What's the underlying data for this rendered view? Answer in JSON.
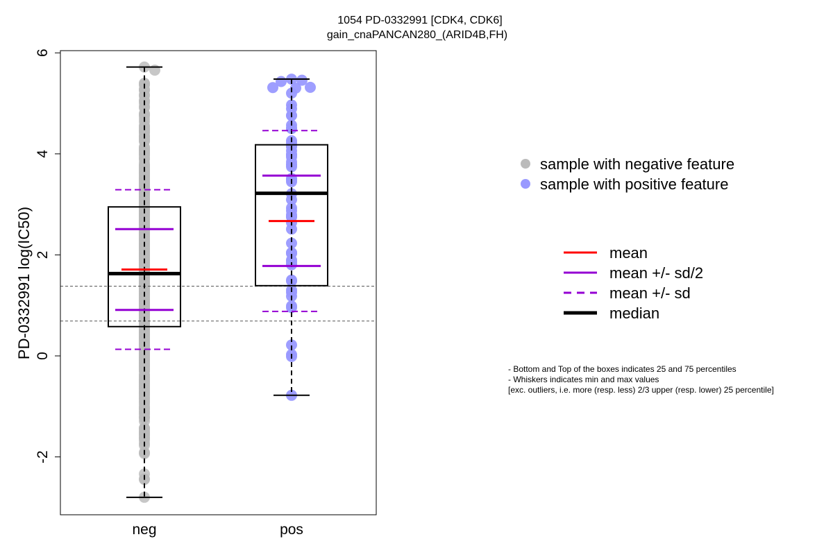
{
  "chart_data": {
    "type": "box+beeswarm",
    "title_line1": "1054 PD-0332991 [CDK4, CDK6]",
    "title_line2": "gain_cnaPANCAN280_(ARID4B,FH)",
    "ylabel": "PD-0332991 log(IC50)",
    "xlabel": "",
    "ylim": [
      -3.05,
      6.1
    ],
    "yticks": [
      -2,
      0,
      2,
      4,
      6
    ],
    "categories": [
      "neg",
      "pos"
    ],
    "reference_lines": [
      1.38,
      0.69
    ],
    "groups": [
      {
        "name": "neg",
        "color": "#bbbbbb",
        "n_points": 760,
        "min": -2.8,
        "q1": 0.58,
        "median": 1.63,
        "q3": 2.95,
        "max": 5.72,
        "mean": 1.71,
        "mean_minus_half_sd": 0.91,
        "mean_plus_half_sd": 2.51,
        "mean_minus_sd": 0.13,
        "mean_plus_sd": 3.29
      },
      {
        "name": "pos",
        "color": "#9999ff",
        "n_points": 60,
        "min": -0.78,
        "q1": 1.39,
        "median": 3.22,
        "q3": 4.18,
        "max": 5.48,
        "mean": 2.67,
        "mean_minus_half_sd": 1.78,
        "mean_plus_half_sd": 3.57,
        "mean_minus_sd": 0.88,
        "mean_plus_sd": 4.46
      }
    ],
    "point_legend": [
      {
        "label": "sample with negative feature",
        "color": "#bbbbbb"
      },
      {
        "label": "sample with positive feature",
        "color": "#9999ff"
      }
    ],
    "line_legend": [
      {
        "label": "mean",
        "color": "#ff0000",
        "style": "solid",
        "weight": "normal"
      },
      {
        "label": "mean +/- sd/2",
        "color": "#9400d3",
        "style": "solid",
        "weight": "normal"
      },
      {
        "label": "mean +/- sd",
        "color": "#9400d3",
        "style": "dashed",
        "weight": "normal"
      },
      {
        "label": "median",
        "color": "#000000",
        "style": "solid",
        "weight": "bold"
      }
    ],
    "notes": [
      "- Bottom and Top of the boxes indicates 25 and 75 percentiles",
      "- Whiskers indicates min and max values",
      "[exc. outliers, i.e. more (resp. less) 2/3 upper (resp. lower) 25 percentile]"
    ]
  }
}
